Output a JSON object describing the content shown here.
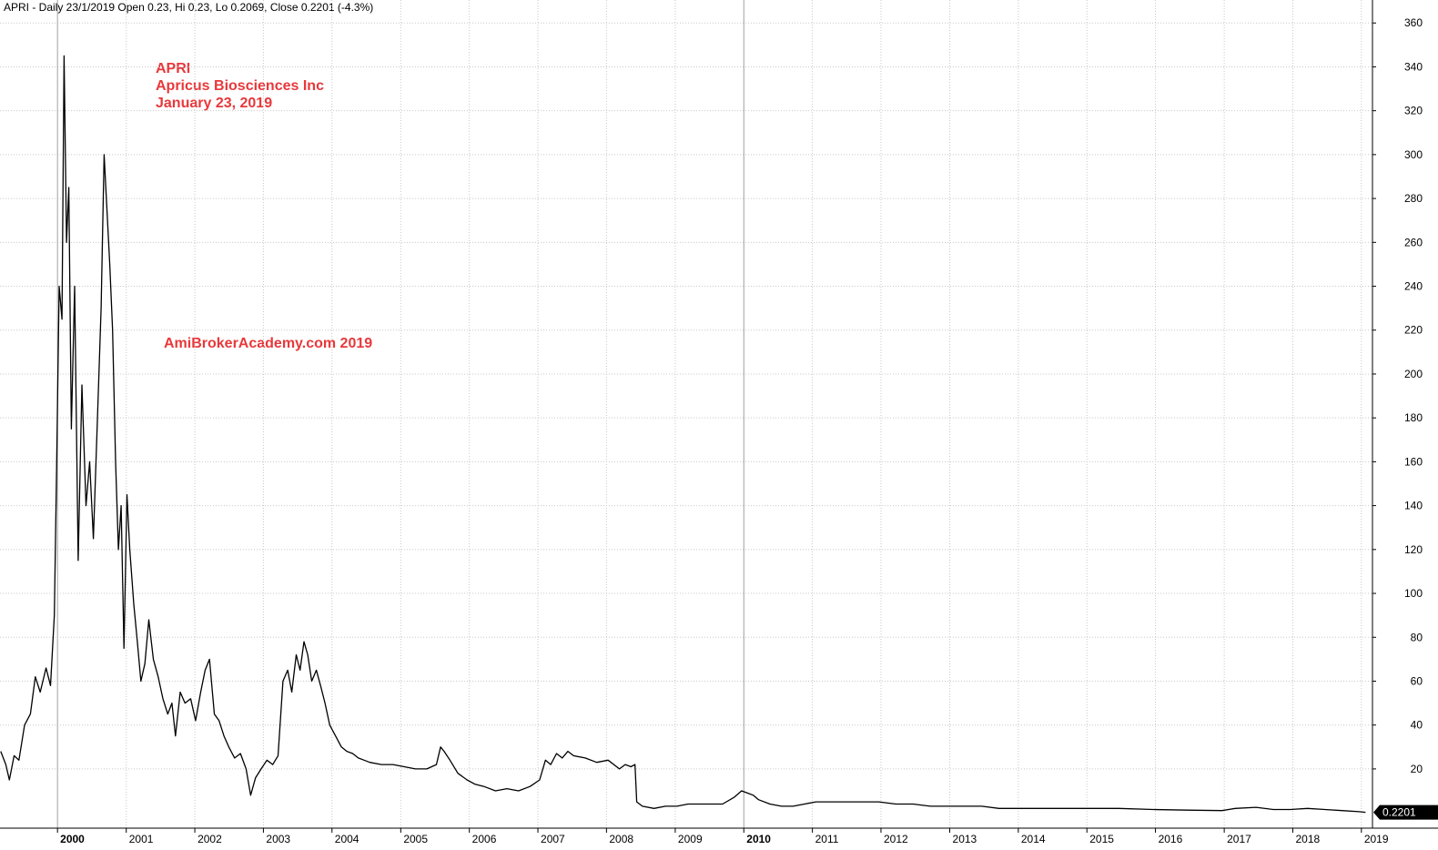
{
  "header": {
    "title_line": "APRI - Daily 23/1/2019 Open 0.23, Hi 0.23, Lo 0.2069, Close 0.2201 (-4.3%)"
  },
  "annotations": {
    "ticker": "APRI",
    "company": "Apricus Biosciences Inc",
    "date": "January 23, 2019",
    "watermark": "AmiBrokerAcademy.com  2019"
  },
  "colors": {
    "price_line": "#000000",
    "annotation": "#e8383b",
    "grid": "#c8c8c8",
    "last_value_bg": "#000000"
  },
  "chart_data": {
    "type": "line",
    "title": "APRI - Daily 23/1/2019 Open 0.23, Hi 0.23, Lo 0.2069, Close 0.2201 (-4.3%)",
    "xlabel": "",
    "ylabel": "",
    "y_axis_position": "right",
    "grid": true,
    "ylim": [
      -7,
      363
    ],
    "xlim": [
      "1999-03-01",
      "2019-03-01"
    ],
    "yticks": [
      20,
      40,
      60,
      80,
      100,
      120,
      140,
      160,
      180,
      200,
      220,
      240,
      260,
      280,
      300,
      320,
      340,
      360
    ],
    "xticks": [
      {
        "label": "2000",
        "date": "2000-01-01",
        "major": true
      },
      {
        "label": "2001",
        "date": "2001-01-01",
        "major": false
      },
      {
        "label": "2002",
        "date": "2002-01-01",
        "major": false
      },
      {
        "label": "2003",
        "date": "2003-01-01",
        "major": false
      },
      {
        "label": "2004",
        "date": "2004-01-01",
        "major": false
      },
      {
        "label": "2005",
        "date": "2005-01-01",
        "major": false
      },
      {
        "label": "2006",
        "date": "2006-01-01",
        "major": false
      },
      {
        "label": "2007",
        "date": "2007-01-01",
        "major": false
      },
      {
        "label": "2008",
        "date": "2008-01-01",
        "major": false
      },
      {
        "label": "2009",
        "date": "2009-01-01",
        "major": false
      },
      {
        "label": "2010",
        "date": "2010-01-01",
        "major": true
      },
      {
        "label": "2011",
        "date": "2011-01-01",
        "major": false
      },
      {
        "label": "2012",
        "date": "2012-01-01",
        "major": false
      },
      {
        "label": "2013",
        "date": "2013-01-01",
        "major": false
      },
      {
        "label": "2014",
        "date": "2014-01-01",
        "major": false
      },
      {
        "label": "2015",
        "date": "2015-01-01",
        "major": false
      },
      {
        "label": "2016",
        "date": "2016-01-01",
        "major": false
      },
      {
        "label": "2017",
        "date": "2017-01-01",
        "major": false
      },
      {
        "label": "2018",
        "date": "2018-01-01",
        "major": false
      },
      {
        "label": "2019",
        "date": "2019-01-01",
        "major": false
      }
    ],
    "series": [
      {
        "points": [
          [
            "1999-03-05",
            28
          ],
          [
            "1999-04-01",
            22
          ],
          [
            "1999-04-20",
            15
          ],
          [
            "1999-05-15",
            26
          ],
          [
            "1999-06-10",
            24
          ],
          [
            "1999-07-10",
            40
          ],
          [
            "1999-08-10",
            45
          ],
          [
            "1999-09-05",
            62
          ],
          [
            "1999-10-01",
            55
          ],
          [
            "1999-11-01",
            66
          ],
          [
            "1999-11-25",
            58
          ],
          [
            "1999-12-15",
            90
          ],
          [
            "1999-12-28",
            160
          ],
          [
            "2000-01-10",
            240
          ],
          [
            "2000-01-25",
            225
          ],
          [
            "2000-02-05",
            345
          ],
          [
            "2000-02-18",
            260
          ],
          [
            "2000-03-01",
            285
          ],
          [
            "2000-03-15",
            175
          ],
          [
            "2000-04-01",
            240
          ],
          [
            "2000-04-20",
            115
          ],
          [
            "2000-05-10",
            195
          ],
          [
            "2000-06-01",
            140
          ],
          [
            "2000-06-20",
            160
          ],
          [
            "2000-07-10",
            125
          ],
          [
            "2000-08-01",
            180
          ],
          [
            "2000-08-20",
            230
          ],
          [
            "2000-09-05",
            300
          ],
          [
            "2000-09-20",
            275
          ],
          [
            "2000-10-05",
            250
          ],
          [
            "2000-10-20",
            220
          ],
          [
            "2000-11-05",
            160
          ],
          [
            "2000-11-20",
            120
          ],
          [
            "2000-12-05",
            140
          ],
          [
            "2000-12-20",
            75
          ],
          [
            "2001-01-05",
            145
          ],
          [
            "2001-01-20",
            120
          ],
          [
            "2001-02-10",
            95
          ],
          [
            "2001-03-01",
            78
          ],
          [
            "2001-03-20",
            60
          ],
          [
            "2001-04-10",
            68
          ],
          [
            "2001-05-01",
            88
          ],
          [
            "2001-05-25",
            70
          ],
          [
            "2001-06-20",
            62
          ],
          [
            "2001-07-15",
            52
          ],
          [
            "2001-08-10",
            45
          ],
          [
            "2001-09-01",
            50
          ],
          [
            "2001-09-20",
            35
          ],
          [
            "2001-10-15",
            55
          ],
          [
            "2001-11-10",
            50
          ],
          [
            "2001-12-10",
            52
          ],
          [
            "2002-01-05",
            42
          ],
          [
            "2002-02-01",
            55
          ],
          [
            "2002-02-25",
            65
          ],
          [
            "2002-03-20",
            70
          ],
          [
            "2002-04-15",
            45
          ],
          [
            "2002-05-10",
            42
          ],
          [
            "2002-06-05",
            35
          ],
          [
            "2002-07-01",
            30
          ],
          [
            "2002-08-01",
            25
          ],
          [
            "2002-09-01",
            27
          ],
          [
            "2002-10-01",
            20
          ],
          [
            "2002-10-25",
            8
          ],
          [
            "2002-11-20",
            16
          ],
          [
            "2002-12-20",
            20
          ],
          [
            "2003-01-20",
            24
          ],
          [
            "2003-02-20",
            22
          ],
          [
            "2003-03-20",
            26
          ],
          [
            "2003-04-15",
            60
          ],
          [
            "2003-05-10",
            65
          ],
          [
            "2003-06-01",
            55
          ],
          [
            "2003-06-25",
            72
          ],
          [
            "2003-07-15",
            65
          ],
          [
            "2003-08-05",
            78
          ],
          [
            "2003-08-25",
            72
          ],
          [
            "2003-09-15",
            60
          ],
          [
            "2003-10-10",
            65
          ],
          [
            "2003-11-01",
            58
          ],
          [
            "2003-11-25",
            50
          ],
          [
            "2003-12-20",
            40
          ],
          [
            "2004-01-20",
            35
          ],
          [
            "2004-02-20",
            30
          ],
          [
            "2004-03-20",
            28
          ],
          [
            "2004-04-20",
            27
          ],
          [
            "2004-05-20",
            25
          ],
          [
            "2004-06-20",
            24
          ],
          [
            "2004-07-20",
            23
          ],
          [
            "2004-09-20",
            22
          ],
          [
            "2004-11-20",
            22
          ],
          [
            "2005-01-20",
            21
          ],
          [
            "2005-03-20",
            20
          ],
          [
            "2005-05-20",
            20
          ],
          [
            "2005-07-10",
            22
          ],
          [
            "2005-08-01",
            30
          ],
          [
            "2005-08-20",
            28
          ],
          [
            "2005-09-20",
            24
          ],
          [
            "2005-11-01",
            18
          ],
          [
            "2005-12-20",
            15
          ],
          [
            "2006-02-01",
            13
          ],
          [
            "2006-03-20",
            12
          ],
          [
            "2006-05-20",
            10
          ],
          [
            "2006-07-20",
            11
          ],
          [
            "2006-09-20",
            10
          ],
          [
            "2006-11-20",
            12
          ],
          [
            "2007-01-10",
            15
          ],
          [
            "2007-02-10",
            24
          ],
          [
            "2007-03-10",
            22
          ],
          [
            "2007-04-10",
            27
          ],
          [
            "2007-05-10",
            25
          ],
          [
            "2007-06-10",
            28
          ],
          [
            "2007-07-10",
            26
          ],
          [
            "2007-09-10",
            25
          ],
          [
            "2007-11-10",
            23
          ],
          [
            "2008-01-10",
            24
          ],
          [
            "2008-03-10",
            20
          ],
          [
            "2008-04-10",
            22
          ],
          [
            "2008-05-10",
            21
          ],
          [
            "2008-06-01",
            22
          ],
          [
            "2008-06-10",
            5
          ],
          [
            "2008-07-10",
            3
          ],
          [
            "2008-09-10",
            2
          ],
          [
            "2008-11-10",
            3
          ],
          [
            "2009-01-10",
            3
          ],
          [
            "2009-03-10",
            4
          ],
          [
            "2009-05-10",
            4
          ],
          [
            "2009-07-10",
            4
          ],
          [
            "2009-09-10",
            4
          ],
          [
            "2009-11-10",
            7
          ],
          [
            "2009-12-20",
            10
          ],
          [
            "2010-01-20",
            9
          ],
          [
            "2010-02-20",
            8
          ],
          [
            "2010-03-20",
            6
          ],
          [
            "2010-05-20",
            4
          ],
          [
            "2010-07-20",
            3
          ],
          [
            "2010-09-20",
            3
          ],
          [
            "2010-11-20",
            4
          ],
          [
            "2011-01-20",
            5
          ],
          [
            "2011-03-20",
            5
          ],
          [
            "2011-06-20",
            5
          ],
          [
            "2011-09-20",
            5
          ],
          [
            "2011-12-20",
            5
          ],
          [
            "2012-03-20",
            4
          ],
          [
            "2012-06-20",
            4
          ],
          [
            "2012-09-20",
            3
          ],
          [
            "2012-12-20",
            3
          ],
          [
            "2013-03-20",
            3
          ],
          [
            "2013-06-20",
            3
          ],
          [
            "2013-09-20",
            2
          ],
          [
            "2013-12-20",
            2
          ],
          [
            "2014-06-20",
            2
          ],
          [
            "2014-12-20",
            2
          ],
          [
            "2015-06-20",
            2
          ],
          [
            "2015-12-20",
            1.5
          ],
          [
            "2016-06-20",
            1.2
          ],
          [
            "2016-12-20",
            1.0
          ],
          [
            "2017-03-01",
            2.0
          ],
          [
            "2017-06-20",
            2.5
          ],
          [
            "2017-09-20",
            1.5
          ],
          [
            "2017-12-20",
            1.5
          ],
          [
            "2018-03-20",
            2.0
          ],
          [
            "2018-06-20",
            1.5
          ],
          [
            "2018-09-20",
            1.0
          ],
          [
            "2018-12-20",
            0.5
          ],
          [
            "2019-01-23",
            0.2201
          ]
        ]
      }
    ],
    "last_value": {
      "label": "0.2201",
      "value": 0.2201
    }
  }
}
